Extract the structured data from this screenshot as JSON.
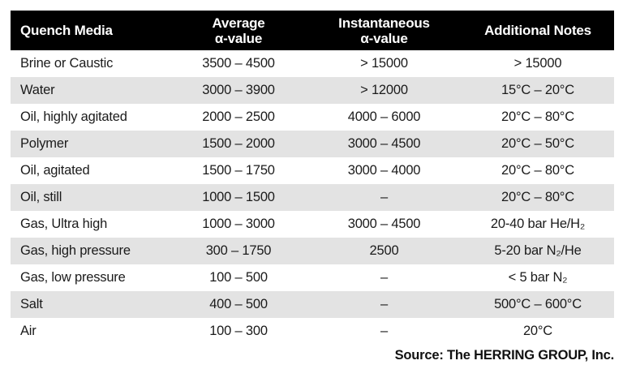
{
  "colors": {
    "header_bg": "#000000",
    "header_text": "#ffffff",
    "row_alt_bg": "#e3e3e3",
    "body_text": "#1b1b1b",
    "page_bg": "#ffffff"
  },
  "chart_data": {
    "type": "table",
    "columns": [
      "Quench Media",
      "Average α-value",
      "Instantaneous α-value",
      "Additional Notes"
    ],
    "headers": [
      {
        "line1": "Quench Media",
        "line2": ""
      },
      {
        "line1": "Average",
        "line2": "α-value"
      },
      {
        "line1": "Instantaneous",
        "line2": "α-value"
      },
      {
        "line1": "Additional Notes",
        "line2": ""
      }
    ],
    "rows": [
      {
        "media": "Brine or Caustic",
        "avg": "3500 – 4500",
        "inst": "> 15000",
        "notes": "> 15000"
      },
      {
        "media": "Water",
        "avg": "3000 – 3900",
        "inst": "> 12000",
        "notes": "15°C – 20°C"
      },
      {
        "media": "Oil, highly agitated",
        "avg": "2000 – 2500",
        "inst": "4000 – 6000",
        "notes": "20°C – 80°C"
      },
      {
        "media": "Polymer",
        "avg": "1500 – 2000",
        "inst": "3000 – 4500",
        "notes": "20°C – 50°C"
      },
      {
        "media": "Oil, agitated",
        "avg": "1500 – 1750",
        "inst": "3000 – 4000",
        "notes": "20°C – 80°C"
      },
      {
        "media": "Oil, still",
        "avg": "1000 – 1500",
        "inst": "–",
        "notes": "20°C – 80°C"
      },
      {
        "media": "Gas, Ultra high",
        "avg": "1000 – 3000",
        "inst": "3000 – 4500",
        "notes": "20-40 bar He/H₂"
      },
      {
        "media": "Gas, high pressure",
        "avg": "300 – 1750",
        "inst": "2500",
        "notes": "5-20 bar N₂/He"
      },
      {
        "media": "Gas, low pressure",
        "avg": "100 – 500",
        "inst": "–",
        "notes": "< 5 bar N₂"
      },
      {
        "media": "Salt",
        "avg": "400 – 500",
        "inst": "–",
        "notes": "500°C – 600°C"
      },
      {
        "media": "Air",
        "avg": "100 – 300",
        "inst": "–",
        "notes": "20°C"
      }
    ],
    "source": "Source: The HERRING GROUP, Inc."
  }
}
